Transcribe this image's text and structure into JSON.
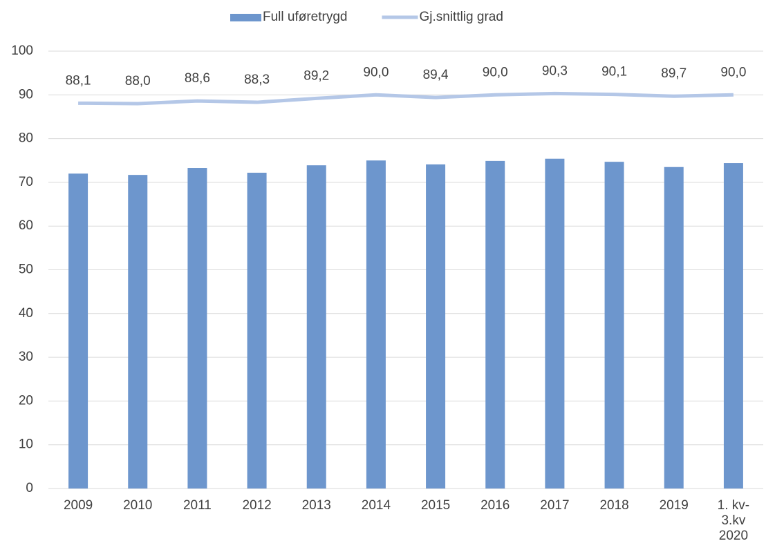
{
  "chart_data": {
    "type": "bar-line",
    "categories": [
      "2009",
      "2010",
      "2011",
      "2012",
      "2013",
      "2014",
      "2015",
      "2016",
      "2017",
      "2018",
      "2019",
      "1. kv-3.kv 2020"
    ],
    "series": [
      {
        "name": "Full uføretrygd",
        "type": "bar",
        "color": "#6d96cd",
        "values": [
          72.0,
          71.7,
          73.3,
          72.2,
          73.9,
          75.0,
          74.1,
          74.9,
          75.4,
          74.7,
          73.5,
          74.4
        ]
      },
      {
        "name": "Gj.snittlig grad",
        "type": "line",
        "color": "#b4c7e7",
        "values": [
          88.1,
          88.0,
          88.6,
          88.3,
          89.2,
          90.0,
          89.4,
          90.0,
          90.3,
          90.1,
          89.7,
          90.0
        ],
        "value_labels": [
          "88,1",
          "88,0",
          "88,6",
          "88,3",
          "89,2",
          "90,0",
          "89,4",
          "90,0",
          "90,3",
          "90,1",
          "89,7",
          "90,0"
        ]
      }
    ],
    "ylim": [
      0,
      100
    ],
    "yticks": [
      0,
      10,
      20,
      30,
      40,
      50,
      60,
      70,
      80,
      90,
      100
    ],
    "grid": true,
    "legend": "top"
  }
}
